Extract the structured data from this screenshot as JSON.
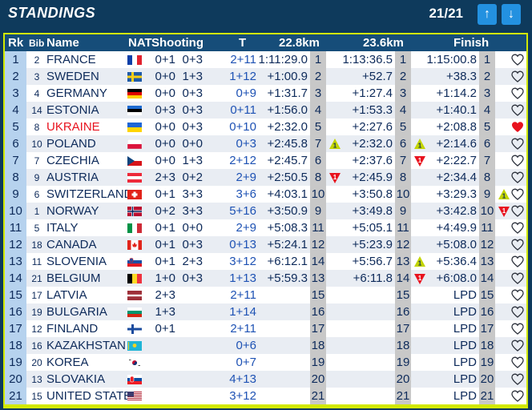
{
  "header": {
    "title": "STANDINGS",
    "pager": "21/21",
    "up_icon": "arrow-up-icon",
    "down_icon": "arrow-down-icon",
    "up_glyph": "↑",
    "down_glyph": "↓"
  },
  "columns": {
    "rank": "Rk",
    "bib": "Bib",
    "name": "Name",
    "nat": "NAT",
    "shooting": "Shooting",
    "total": "T",
    "split1": "22.8km",
    "split2": "23.6km",
    "finish": "Finish"
  },
  "colors": {
    "header_bg": "#0e3a5c",
    "table_border": "#d2e900",
    "column_header_bg": "#164d79",
    "nav_button": "#2391e0",
    "highlight_name": "#e8121e",
    "gain_triangle": "#c2d400",
    "loss_triangle": "#e8121e",
    "favourite_heart": "#e8121e"
  },
  "rows": [
    {
      "rank": "1",
      "bib": "2",
      "name": "FRANCE",
      "nat": "FRA",
      "s1": "0+1",
      "s2": "0+3",
      "total": "2+11",
      "t1": "1:11:29.0",
      "p1": "1",
      "d1": "",
      "t2": "1:13:36.5",
      "p2": "1",
      "d2": "",
      "t3": "1:15:00.8",
      "p3": "1",
      "d3": "",
      "fav": false,
      "highlight": false
    },
    {
      "rank": "2",
      "bib": "3",
      "name": "SWEDEN",
      "nat": "SWE",
      "s1": "0+0",
      "s2": "1+3",
      "total": "1+12",
      "t1": "+1:00.9",
      "p1": "2",
      "d1": "",
      "t2": "+52.7",
      "p2": "2",
      "d2": "",
      "t3": "+38.3",
      "p3": "2",
      "d3": "",
      "fav": false,
      "highlight": false
    },
    {
      "rank": "3",
      "bib": "4",
      "name": "GERMANY",
      "nat": "GER",
      "s1": "0+0",
      "s2": "0+3",
      "total": "0+9",
      "t1": "+1:31.7",
      "p1": "3",
      "d1": "",
      "t2": "+1:27.4",
      "p2": "3",
      "d2": "",
      "t3": "+1:14.2",
      "p3": "3",
      "d3": "",
      "fav": false,
      "highlight": false
    },
    {
      "rank": "4",
      "bib": "14",
      "name": "ESTONIA",
      "nat": "EST",
      "s1": "0+3",
      "s2": "0+3",
      "total": "0+11",
      "t1": "+1:56.0",
      "p1": "4",
      "d1": "",
      "t2": "+1:53.3",
      "p2": "4",
      "d2": "",
      "t3": "+1:40.1",
      "p3": "4",
      "d3": "",
      "fav": false,
      "highlight": false
    },
    {
      "rank": "5",
      "bib": "8",
      "name": "UKRAINE",
      "nat": "UKR",
      "s1": "0+0",
      "s2": "0+3",
      "total": "0+10",
      "t1": "+2:32.0",
      "p1": "5",
      "d1": "",
      "t2": "+2:27.6",
      "p2": "5",
      "d2": "",
      "t3": "+2:08.8",
      "p3": "5",
      "d3": "",
      "fav": true,
      "highlight": true
    },
    {
      "rank": "6",
      "bib": "10",
      "name": "POLAND",
      "nat": "POL",
      "s1": "0+0",
      "s2": "0+0",
      "total": "0+3",
      "t1": "+2:45.8",
      "p1": "7",
      "d1": "1",
      "t2": "+2:32.0",
      "p2": "6",
      "d2": "1",
      "t3": "+2:14.6",
      "p3": "6",
      "d3": "",
      "fav": false,
      "highlight": false
    },
    {
      "rank": "7",
      "bib": "7",
      "name": "CZECHIA",
      "nat": "CZE",
      "s1": "0+0",
      "s2": "1+3",
      "total": "2+12",
      "t1": "+2:45.7",
      "p1": "6",
      "d1": "",
      "t2": "+2:37.6",
      "p2": "7",
      "d2": "-1",
      "t3": "+2:22.7",
      "p3": "7",
      "d3": "",
      "fav": false,
      "highlight": false
    },
    {
      "rank": "8",
      "bib": "9",
      "name": "AUSTRIA",
      "nat": "AUT",
      "s1": "2+3",
      "s2": "0+2",
      "total": "2+9",
      "t1": "+2:50.5",
      "p1": "8",
      "d1": "-1",
      "t2": "+2:45.9",
      "p2": "8",
      "d2": "",
      "t3": "+2:34.4",
      "p3": "8",
      "d3": "",
      "fav": false,
      "highlight": false
    },
    {
      "rank": "9",
      "bib": "6",
      "name": "SWITZERLAND",
      "nat": "SUI",
      "s1": "0+1",
      "s2": "3+3",
      "total": "3+6",
      "t1": "+4:03.1",
      "p1": "10",
      "d1": "",
      "t2": "+3:50.8",
      "p2": "10",
      "d2": "",
      "t3": "+3:29.3",
      "p3": "9",
      "d3": "1",
      "fav": false,
      "highlight": false
    },
    {
      "rank": "10",
      "bib": "1",
      "name": "NORWAY",
      "nat": "NOR",
      "s1": "0+2",
      "s2": "3+3",
      "total": "5+16",
      "t1": "+3:50.9",
      "p1": "9",
      "d1": "",
      "t2": "+3:49.8",
      "p2": "9",
      "d2": "",
      "t3": "+3:42.8",
      "p3": "10",
      "d3": "-1",
      "fav": false,
      "highlight": false
    },
    {
      "rank": "11",
      "bib": "5",
      "name": "ITALY",
      "nat": "ITA",
      "s1": "0+1",
      "s2": "0+0",
      "total": "2+9",
      "t1": "+5:08.3",
      "p1": "11",
      "d1": "",
      "t2": "+5:05.1",
      "p2": "11",
      "d2": "",
      "t3": "+4:49.9",
      "p3": "11",
      "d3": "",
      "fav": false,
      "highlight": false
    },
    {
      "rank": "12",
      "bib": "18",
      "name": "CANADA",
      "nat": "CAN",
      "s1": "0+1",
      "s2": "0+3",
      "total": "0+13",
      "t1": "+5:24.1",
      "p1": "12",
      "d1": "",
      "t2": "+5:23.9",
      "p2": "12",
      "d2": "",
      "t3": "+5:08.0",
      "p3": "12",
      "d3": "",
      "fav": false,
      "highlight": false
    },
    {
      "rank": "13",
      "bib": "11",
      "name": "SLOVENIA",
      "nat": "SLO",
      "s1": "0+1",
      "s2": "2+3",
      "total": "3+12",
      "t1": "+6:12.1",
      "p1": "14",
      "d1": "",
      "t2": "+5:56.7",
      "p2": "13",
      "d2": "1",
      "t3": "+5:36.4",
      "p3": "13",
      "d3": "",
      "fav": false,
      "highlight": false
    },
    {
      "rank": "14",
      "bib": "21",
      "name": "BELGIUM",
      "nat": "BEL",
      "s1": "1+0",
      "s2": "0+3",
      "total": "1+13",
      "t1": "+5:59.3",
      "p1": "13",
      "d1": "",
      "t2": "+6:11.8",
      "p2": "14",
      "d2": "-1",
      "t3": "+6:08.0",
      "p3": "14",
      "d3": "",
      "fav": false,
      "highlight": false
    },
    {
      "rank": "15",
      "bib": "17",
      "name": "LATVIA",
      "nat": "LAT",
      "s1": "2+3",
      "s2": "",
      "total": "2+11",
      "t1": "",
      "p1": "15",
      "d1": "",
      "t2": "",
      "p2": "15",
      "d2": "",
      "t3": "LPD",
      "p3": "15",
      "d3": "",
      "fav": false,
      "highlight": false
    },
    {
      "rank": "16",
      "bib": "19",
      "name": "BULGARIA",
      "nat": "BUL",
      "s1": "1+3",
      "s2": "",
      "total": "1+14",
      "t1": "",
      "p1": "16",
      "d1": "",
      "t2": "",
      "p2": "16",
      "d2": "",
      "t3": "LPD",
      "p3": "16",
      "d3": "",
      "fav": false,
      "highlight": false
    },
    {
      "rank": "17",
      "bib": "12",
      "name": "FINLAND",
      "nat": "FIN",
      "s1": "0+1",
      "s2": "",
      "total": "2+11",
      "t1": "",
      "p1": "17",
      "d1": "",
      "t2": "",
      "p2": "17",
      "d2": "",
      "t3": "LPD",
      "p3": "17",
      "d3": "",
      "fav": false,
      "highlight": false
    },
    {
      "rank": "18",
      "bib": "16",
      "name": "KAZAKHSTAN",
      "nat": "KAZ",
      "s1": "",
      "s2": "",
      "total": "0+6",
      "t1": "",
      "p1": "18",
      "d1": "",
      "t2": "",
      "p2": "18",
      "d2": "",
      "t3": "LPD",
      "p3": "18",
      "d3": "",
      "fav": false,
      "highlight": false
    },
    {
      "rank": "19",
      "bib": "20",
      "name": "KOREA",
      "nat": "KOR",
      "s1": "",
      "s2": "",
      "total": "0+7",
      "t1": "",
      "p1": "19",
      "d1": "",
      "t2": "",
      "p2": "19",
      "d2": "",
      "t3": "LPD",
      "p3": "19",
      "d3": "",
      "fav": false,
      "highlight": false
    },
    {
      "rank": "20",
      "bib": "13",
      "name": "SLOVAKIA",
      "nat": "SVK",
      "s1": "",
      "s2": "",
      "total": "4+13",
      "t1": "",
      "p1": "20",
      "d1": "",
      "t2": "",
      "p2": "20",
      "d2": "",
      "t3": "LPD",
      "p3": "20",
      "d3": "",
      "fav": false,
      "highlight": false
    },
    {
      "rank": "21",
      "bib": "15",
      "name": "UNITED STATES",
      "nat": "USA",
      "s1": "",
      "s2": "",
      "total": "3+12",
      "t1": "",
      "p1": "21",
      "d1": "",
      "t2": "",
      "p2": "21",
      "d2": "",
      "t3": "LPD",
      "p3": "21",
      "d3": "",
      "fav": false,
      "highlight": false
    }
  ]
}
